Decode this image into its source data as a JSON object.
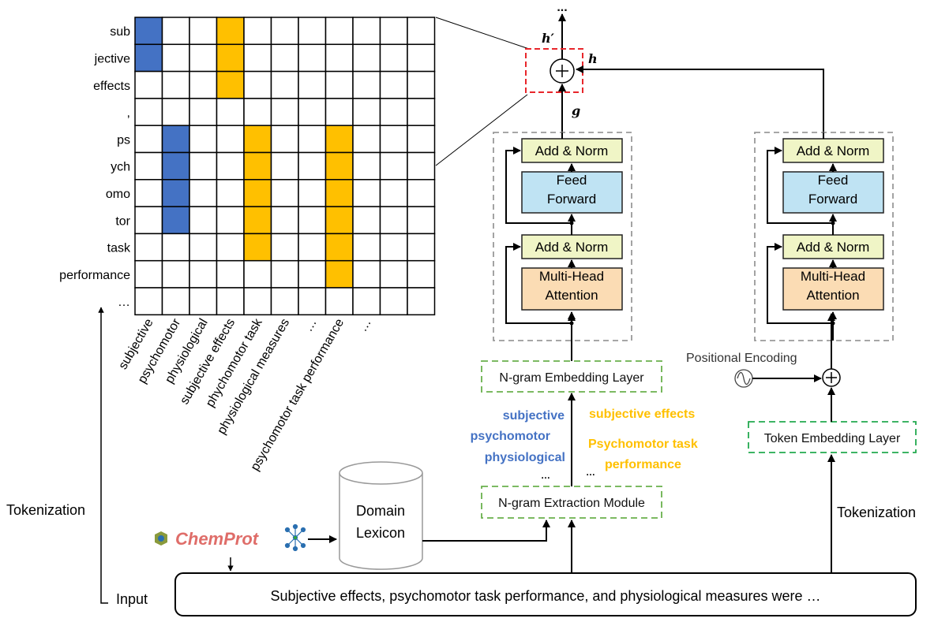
{
  "matrix": {
    "row_labels": [
      "sub",
      "jective",
      "effects",
      ",",
      "ps",
      "ych",
      "omo",
      "tor",
      "task",
      "performance",
      "…"
    ],
    "column_labels": [
      "subjective",
      "psychomotor",
      "physiological",
      "subjective effects",
      "phychomotor task",
      "physiological measures",
      "…",
      "psychomotor task performance",
      "…"
    ],
    "size": 11,
    "blue_cells": [
      [
        0,
        0
      ],
      [
        0,
        1
      ],
      [
        1,
        4
      ],
      [
        1,
        5
      ],
      [
        1,
        6
      ],
      [
        1,
        7
      ]
    ],
    "yellow_cells": [
      [
        3,
        0
      ],
      [
        3,
        1
      ],
      [
        3,
        2
      ],
      [
        4,
        4
      ],
      [
        4,
        5
      ],
      [
        4,
        6
      ],
      [
        4,
        7
      ],
      [
        4,
        8
      ],
      [
        7,
        4
      ],
      [
        7,
        5
      ],
      [
        7,
        6
      ],
      [
        7,
        7
      ],
      [
        7,
        8
      ],
      [
        7,
        9
      ]
    ]
  },
  "colors": {
    "blue": "#4472c4",
    "yellow": "#ffc000",
    "add_norm": "#f0f5c6",
    "feed_forward": "#bfe3f3",
    "attention": "#fbdcb4",
    "red_dash": "#e8262b",
    "green_dash": "#6ab04c",
    "token_green": "#22a94f",
    "gray_dash": "#999999"
  },
  "labels": {
    "top_ellipsis": "...",
    "h_prime": "h′",
    "h": "h",
    "g": "g",
    "add_norm": "Add & Norm",
    "feed": "Feed",
    "forward": "Forward",
    "multi_head": "Multi-Head",
    "attention": "Attention",
    "ngram_embedding": "N-gram Embedding Layer",
    "ngram_extraction": "N-gram Extraction Module",
    "token_embedding": "Token Embedding Layer",
    "positional_encoding": "Positional Encoding",
    "domain": "Domain",
    "lexicon": "Lexicon",
    "chemprot": "ChemProt",
    "tokenization_left": "Tokenization",
    "tokenization_right": "Tokenization",
    "input": "Input",
    "input_sentence": "Subjective effects, psychomotor task performance, and physiological measures were …"
  },
  "ngrams": {
    "blue": [
      "subjective",
      "psychomotor",
      "physiological",
      "…"
    ],
    "yellow": [
      "subjective effects",
      "Psychomotor task",
      "performance",
      "…"
    ]
  }
}
